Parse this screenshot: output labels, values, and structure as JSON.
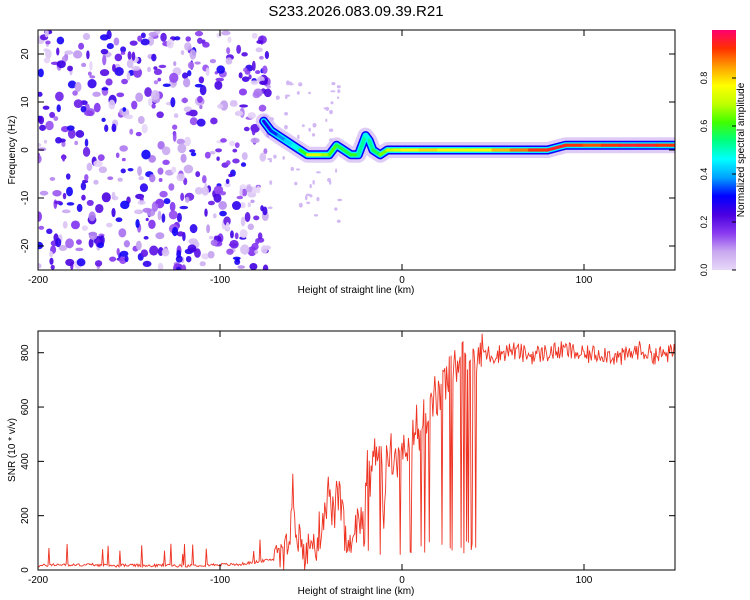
{
  "title": "S233.2026.083.09.39.R21",
  "colors": {
    "snr_line": "#ee3322",
    "colorbar_stops": [
      "#e8d8f8",
      "#c8a8f0",
      "#8a3af0",
      "#4a00e0",
      "#0000ff",
      "#00a0ff",
      "#00ffff",
      "#00ff80",
      "#40ff00",
      "#c0ff00",
      "#ffff00",
      "#ffa000",
      "#ff3000",
      "#ff0070"
    ]
  },
  "chart_data": [
    {
      "type": "heatmap",
      "xlabel": "Height of straight line (km)",
      "ylabel": "Frequency (Hz)",
      "xlim": [
        -200,
        150
      ],
      "ylim": [
        -25,
        25
      ],
      "xticks": [
        "-200",
        "-100",
        "0",
        "100"
      ],
      "xtick_values": [
        -200,
        -100,
        0,
        100
      ],
      "yticks": [
        "-20",
        "-10",
        "0",
        "10",
        "20"
      ],
      "ytick_values": [
        -20,
        -10,
        0,
        10,
        20
      ],
      "noise_region_x": [
        -200,
        -73
      ],
      "ridge": {
        "x": [
          -76,
          -72,
          -68,
          -64,
          -60,
          -56,
          -52,
          -48,
          -44,
          -40,
          -36,
          -32,
          -28,
          -24,
          -20,
          -18,
          -16,
          -12,
          -8,
          -4,
          0,
          10,
          20,
          30,
          40,
          50,
          60,
          70,
          80,
          90,
          100,
          110,
          120,
          130,
          140,
          150
        ],
        "y": [
          6,
          4,
          3,
          2,
          1,
          0,
          -1,
          -1,
          -1,
          -1,
          1,
          0,
          -1,
          -1,
          3,
          2,
          0,
          -1,
          0,
          0,
          0,
          0,
          0,
          0,
          0,
          0,
          0,
          0,
          0,
          1,
          1,
          1,
          1,
          1,
          1,
          1
        ],
        "peak_amplitude": [
          0.25,
          0.3,
          0.35,
          0.4,
          0.45,
          0.5,
          0.7,
          0.75,
          0.7,
          0.65,
          0.6,
          0.55,
          0.6,
          0.6,
          0.45,
          0.5,
          0.55,
          0.6,
          0.7,
          0.7,
          0.75,
          0.8,
          0.8,
          0.75,
          0.75,
          0.8,
          0.85,
          0.9,
          0.95,
          0.95,
          0.9,
          0.9,
          0.95,
          0.95,
          0.95,
          0.9
        ]
      },
      "colorbar": {
        "label": "Normalized spectral amplitude",
        "range": [
          0,
          1
        ],
        "ticks": [
          "0.0",
          "0.2",
          "0.4",
          "0.6",
          "0.8"
        ],
        "tick_values": [
          0.0,
          0.2,
          0.4,
          0.6,
          0.8
        ]
      }
    },
    {
      "type": "line",
      "xlabel": "Height of straight line (km)",
      "ylabel": "SNR (10 * v/v)",
      "xlim": [
        -200,
        150
      ],
      "ylim": [
        0,
        880
      ],
      "xticks": [
        "-200",
        "-100",
        "0",
        "100"
      ],
      "xtick_values": [
        -200,
        -100,
        0,
        100
      ],
      "yticks": [
        "0",
        "200",
        "400",
        "600",
        "800"
      ],
      "ytick_values": [
        0,
        200,
        400,
        600,
        800
      ],
      "series": [
        {
          "x": [
            -200,
            -190,
            -180,
            -170,
            -160,
            -150,
            -140,
            -130,
            -120,
            -110,
            -100,
            -90,
            -85,
            -80,
            -75,
            -70,
            -65,
            -62,
            -60,
            -58,
            -55,
            -52,
            -50,
            -48,
            -45,
            -42,
            -40,
            -38,
            -35,
            -32,
            -30,
            -28,
            -25,
            -22,
            -20,
            -18,
            -15,
            -12,
            -10,
            -8,
            -5,
            -2,
            0,
            2,
            5,
            8,
            10,
            12,
            15,
            18,
            20,
            22,
            25,
            28,
            30,
            35,
            40,
            45,
            50,
            60,
            70,
            80,
            90,
            100,
            110,
            120,
            130,
            140,
            150
          ],
          "values": [
            15,
            20,
            18,
            20,
            15,
            18,
            15,
            18,
            15,
            18,
            20,
            20,
            25,
            30,
            35,
            40,
            60,
            150,
            330,
            150,
            80,
            50,
            110,
            80,
            150,
            250,
            290,
            200,
            280,
            150,
            80,
            60,
            140,
            200,
            400,
            330,
            420,
            500,
            200,
            450,
            420,
            380,
            480,
            380,
            450,
            550,
            450,
            600,
            550,
            650,
            620,
            680,
            700,
            730,
            760,
            780,
            790,
            800,
            790,
            810,
            790,
            800,
            810,
            790,
            800,
            780,
            810,
            790,
            800
          ]
        }
      ]
    }
  ]
}
